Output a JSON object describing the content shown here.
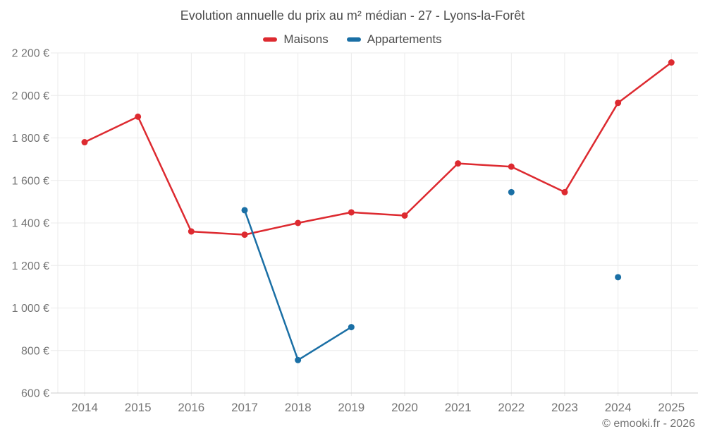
{
  "title": "Evolution annuelle du prix au m² médian - 27 - Lyons-la-Forêt",
  "footer": "© emooki.fr - 2026",
  "colors": {
    "maisons": "#dd2a30",
    "appartements": "#1a6fa5",
    "grid": "#ebebeb",
    "axis": "#cccccc",
    "title_text": "#4d4d4d",
    "tick_text": "#757575"
  },
  "chart_data": {
    "type": "line",
    "title": "Evolution annuelle du prix au m² médian - 27 - Lyons-la-Forêt",
    "categories": [
      "2014",
      "2015",
      "2016",
      "2017",
      "2018",
      "2019",
      "2020",
      "2021",
      "2022",
      "2023",
      "2024",
      "2025"
    ],
    "series": [
      {
        "name": "Maisons",
        "color": "#dd2a30",
        "values": [
          1780,
          1900,
          1360,
          1345,
          1400,
          1450,
          1435,
          1680,
          1665,
          1545,
          1965,
          2155
        ]
      },
      {
        "name": "Appartements",
        "color": "#1a6fa5",
        "values": [
          null,
          null,
          null,
          1460,
          755,
          910,
          null,
          null,
          1545,
          null,
          1145,
          null
        ]
      }
    ],
    "ylim": [
      600,
      2200
    ],
    "ytick_values": [
      600,
      800,
      1000,
      1200,
      1400,
      1600,
      1800,
      2000,
      2200
    ],
    "ytick_labels": [
      "600 €",
      "800 €",
      "1 000 €",
      "1 200 €",
      "1 400 €",
      "1 600 €",
      "1 800 €",
      "2 000 €",
      "2 200 €"
    ],
    "xlabel": "",
    "ylabel": "",
    "grid": true,
    "legend_position": "top",
    "currency": "€"
  }
}
